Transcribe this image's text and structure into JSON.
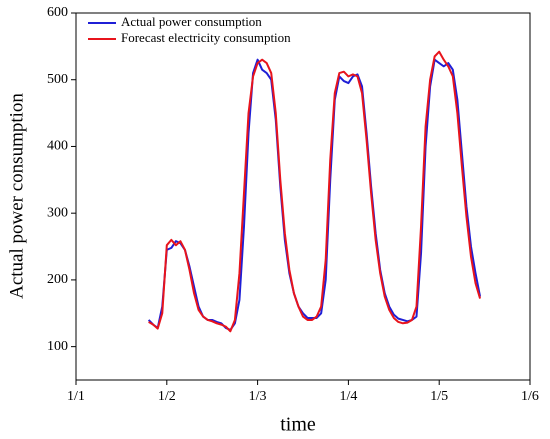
{
  "chart_data": {
    "type": "line",
    "xlabel": "time",
    "ylabel": "Actual power consumption",
    "x": [
      0.8,
      0.85,
      0.9,
      0.95,
      1.0,
      1.05,
      1.1,
      1.15,
      1.2,
      1.25,
      1.3,
      1.35,
      1.4,
      1.45,
      1.5,
      1.55,
      1.6,
      1.65,
      1.7,
      1.75,
      1.8,
      1.85,
      1.9,
      1.95,
      2.0,
      2.05,
      2.1,
      2.15,
      2.2,
      2.25,
      2.3,
      2.35,
      2.4,
      2.45,
      2.5,
      2.55,
      2.6,
      2.65,
      2.7,
      2.75,
      2.8,
      2.85,
      2.9,
      2.95,
      3.0,
      3.05,
      3.1,
      3.15,
      3.2,
      3.25,
      3.3,
      3.35,
      3.4,
      3.45,
      3.5,
      3.55,
      3.6,
      3.65,
      3.7,
      3.75,
      3.8,
      3.85,
      3.9,
      3.95,
      4.0,
      4.05,
      4.1,
      4.15,
      4.2,
      4.25,
      4.3,
      4.35,
      4.4,
      4.45
    ],
    "series": [
      {
        "name": "Actual power consumption",
        "color": "#1f1fd6",
        "values": [
          140,
          133,
          128,
          160,
          245,
          248,
          258,
          255,
          245,
          220,
          190,
          160,
          145,
          140,
          140,
          137,
          135,
          128,
          125,
          135,
          170,
          280,
          420,
          510,
          530,
          515,
          510,
          500,
          440,
          340,
          260,
          210,
          180,
          160,
          150,
          143,
          143,
          143,
          150,
          200,
          350,
          470,
          505,
          498,
          495,
          505,
          508,
          490,
          420,
          340,
          270,
          215,
          180,
          160,
          148,
          142,
          140,
          138,
          140,
          145,
          240,
          400,
          490,
          530,
          525,
          520,
          525,
          515,
          470,
          390,
          310,
          250,
          210,
          175
        ]
      },
      {
        "name": "Forecast electricity consumption",
        "color": "#e8141c",
        "values": [
          137,
          133,
          127,
          150,
          252,
          260,
          252,
          258,
          245,
          215,
          180,
          155,
          145,
          140,
          138,
          135,
          133,
          130,
          123,
          140,
          210,
          330,
          450,
          505,
          525,
          530,
          525,
          510,
          450,
          350,
          270,
          215,
          180,
          160,
          145,
          140,
          140,
          145,
          160,
          230,
          380,
          480,
          510,
          512,
          505,
          508,
          505,
          480,
          410,
          330,
          260,
          210,
          175,
          155,
          143,
          137,
          135,
          136,
          140,
          160,
          280,
          430,
          500,
          535,
          542,
          530,
          520,
          505,
          450,
          370,
          295,
          235,
          195,
          172
        ]
      }
    ],
    "xlim": [
      0,
      5
    ],
    "xticks": [
      {
        "value": 0,
        "label": "1/1"
      },
      {
        "value": 1,
        "label": "1/2"
      },
      {
        "value": 2,
        "label": "1/3"
      },
      {
        "value": 3,
        "label": "1/4"
      },
      {
        "value": 4,
        "label": "1/5"
      },
      {
        "value": 5,
        "label": "1/6"
      }
    ],
    "ylim": [
      50,
      600
    ],
    "yticks": [
      100,
      200,
      300,
      400,
      500,
      600
    ],
    "legend": "upper left"
  }
}
